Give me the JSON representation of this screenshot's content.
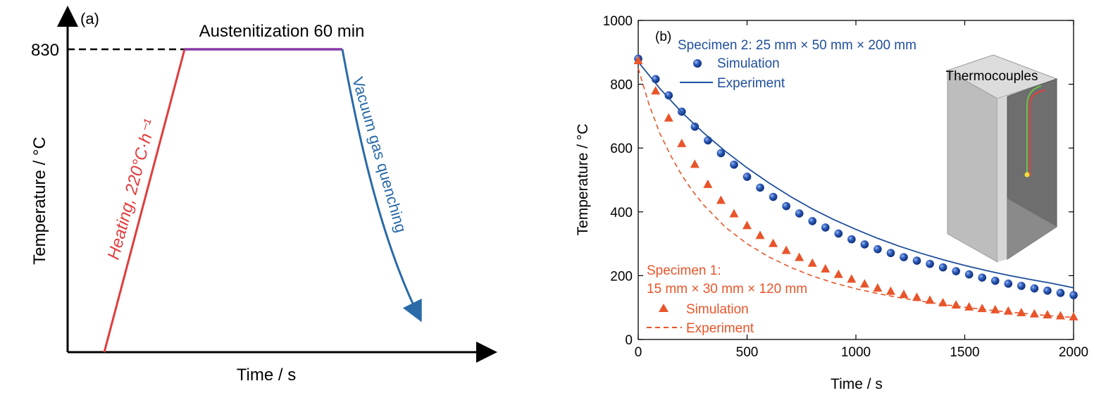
{
  "colors": {
    "blue": "#1f4e9c",
    "orange": "#e8552a",
    "heating": "#e03c3c",
    "hold": "#8a3aa8",
    "quench": "#2a6aa8",
    "axis": "#000000"
  },
  "chart_data": [
    {
      "type": "line",
      "panel_label": "(a)",
      "title": "",
      "xlabel": "Time / s",
      "ylabel": "Temperature / °C",
      "yticks": [
        "830"
      ],
      "annotations": {
        "hold": "Austenitization 60 min",
        "heating": "Heating, 220°C·h⁻¹",
        "quench": "Vacuum gas quenching"
      },
      "segments": [
        {
          "name": "heating",
          "x": [
            0.12,
            0.37
          ],
          "y": [
            0,
            830
          ]
        },
        {
          "name": "hold",
          "x": [
            0.37,
            0.83
          ],
          "y": [
            830,
            830
          ]
        },
        {
          "name": "quench",
          "x": [
            0.83,
            1.0
          ],
          "y": [
            830,
            140
          ]
        }
      ]
    },
    {
      "type": "scatter",
      "panel_label": "(b)",
      "title": "",
      "xlabel": "Time / s",
      "ylabel": "Temperature / °C",
      "xlim": [
        0,
        2000
      ],
      "ylim": [
        0,
        1000
      ],
      "xticks": [
        0,
        500,
        1000,
        1500,
        2000
      ],
      "yticks": [
        0,
        200,
        400,
        600,
        800,
        1000
      ],
      "inset_label": "Thermocouples",
      "legend_groups": [
        {
          "header": "Specimen 2: 25 mm × 50 mm × 200 mm",
          "sim": "Simulation",
          "exp": "Experiment"
        },
        {
          "header": "Specimen 1:",
          "header2": "15 mm × 30 mm × 120 mm",
          "sim": "Simulation",
          "exp": "Experiment"
        }
      ],
      "series": [
        {
          "name": "Simulation",
          "group": "Specimen 2",
          "marker": "circle",
          "x": [
            0,
            80,
            140,
            200,
            260,
            320,
            380,
            440,
            500,
            560,
            620,
            680,
            740,
            800,
            860,
            920,
            980,
            1040,
            1100,
            1160,
            1220,
            1280,
            1340,
            1400,
            1460,
            1520,
            1580,
            1640,
            1700,
            1760,
            1820,
            1880,
            1940,
            2000
          ],
          "y": [
            880,
            816,
            765,
            714,
            667,
            624,
            584,
            548,
            510,
            476,
            447,
            418,
            395,
            371,
            351,
            332,
            314,
            298,
            283,
            271,
            258,
            247,
            237,
            226,
            214,
            204,
            194,
            184,
            175,
            168,
            160,
            153,
            146,
            139
          ]
        },
        {
          "name": "Experiment",
          "group": "Specimen 2",
          "marker": "line",
          "x": [
            0,
            100,
            200,
            300,
            400,
            500,
            600,
            700,
            800,
            900,
            1000,
            1100,
            1200,
            1300,
            1400,
            1500,
            1600,
            1700,
            1800,
            1900,
            2000
          ],
          "y": [
            870,
            786,
            712,
            648,
            590,
            538,
            491,
            448,
            409,
            375,
            345,
            317,
            292,
            270,
            250,
            232,
            216,
            201,
            188,
            176,
            162
          ]
        },
        {
          "name": "Simulation",
          "group": "Specimen 1",
          "marker": "triangle",
          "x": [
            0,
            80,
            140,
            200,
            260,
            320,
            380,
            440,
            500,
            560,
            620,
            680,
            740,
            800,
            860,
            920,
            980,
            1040,
            1100,
            1160,
            1220,
            1280,
            1340,
            1400,
            1460,
            1520,
            1580,
            1640,
            1700,
            1760,
            1820,
            1880,
            1940,
            2000
          ],
          "y": [
            875,
            780,
            695,
            615,
            550,
            487,
            437,
            395,
            358,
            327,
            302,
            280,
            258,
            240,
            222,
            205,
            190,
            175,
            162,
            152,
            142,
            133,
            124,
            116,
            109,
            103,
            98,
            94,
            90,
            85,
            81,
            78,
            75,
            72
          ]
        },
        {
          "name": "Experiment",
          "group": "Specimen 1",
          "marker": "dashed",
          "x": [
            0,
            50,
            100,
            150,
            200,
            250,
            300,
            400,
            500,
            600,
            700,
            800,
            900,
            1000,
            1100,
            1200,
            1300,
            1400,
            1500,
            1600,
            1700,
            1800,
            1900,
            2000
          ],
          "y": [
            850,
            735,
            645,
            575,
            515,
            465,
            422,
            352,
            300,
            259,
            226,
            199,
            177,
            159,
            144,
            131,
            120,
            110,
            101,
            93,
            86,
            80,
            74,
            69
          ]
        }
      ]
    }
  ]
}
